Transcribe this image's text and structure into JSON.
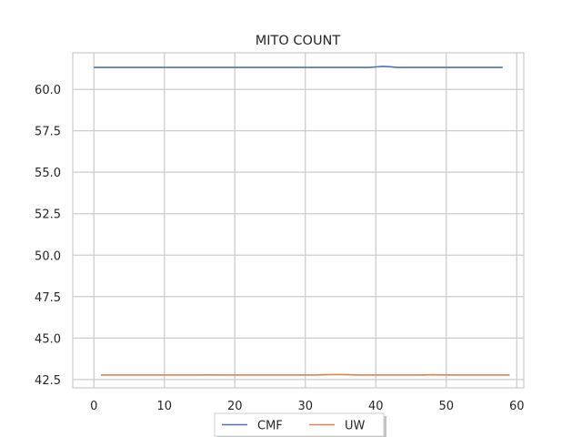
{
  "chart_data": {
    "type": "line",
    "title": "MITO COUNT",
    "xlabel": "",
    "ylabel": "",
    "xlim": [
      -3,
      61
    ],
    "ylim": [
      42.0,
      62.2
    ],
    "xticks": [
      0,
      10,
      20,
      30,
      40,
      50,
      60
    ],
    "xtick_labels": [
      "0",
      "10",
      "20",
      "30",
      "40",
      "50",
      "60"
    ],
    "yticks": [
      42.5,
      45.0,
      47.5,
      50.0,
      52.5,
      55.0,
      57.5,
      60.0
    ],
    "ytick_labels": [
      "42.5",
      "45.0",
      "47.5",
      "50.0",
      "52.5",
      "55.0",
      "57.5",
      "60.0"
    ],
    "grid": true,
    "legend_position": "bottom-center",
    "series": [
      {
        "name": "CMF",
        "color": "#4c72b0",
        "x": [
          0,
          10,
          20,
          30,
          38,
          39,
          40,
          41,
          42,
          43,
          50,
          58
        ],
        "y": [
          61.32,
          61.32,
          61.32,
          61.32,
          61.32,
          61.32,
          61.35,
          61.38,
          61.36,
          61.32,
          61.32,
          61.32
        ]
      },
      {
        "name": "UW",
        "color": "#dd8452",
        "x": [
          1,
          10,
          15,
          16,
          17,
          18,
          30,
          31,
          32,
          33,
          34,
          35,
          36,
          37,
          38,
          40,
          45,
          46,
          47,
          48,
          49,
          50,
          51,
          52,
          59
        ],
        "y": [
          42.77,
          42.77,
          42.77,
          42.78,
          42.78,
          42.77,
          42.77,
          42.77,
          42.78,
          42.79,
          42.8,
          42.8,
          42.79,
          42.78,
          42.77,
          42.77,
          42.77,
          42.77,
          42.78,
          42.79,
          42.78,
          42.78,
          42.77,
          42.77,
          42.77
        ]
      }
    ]
  }
}
